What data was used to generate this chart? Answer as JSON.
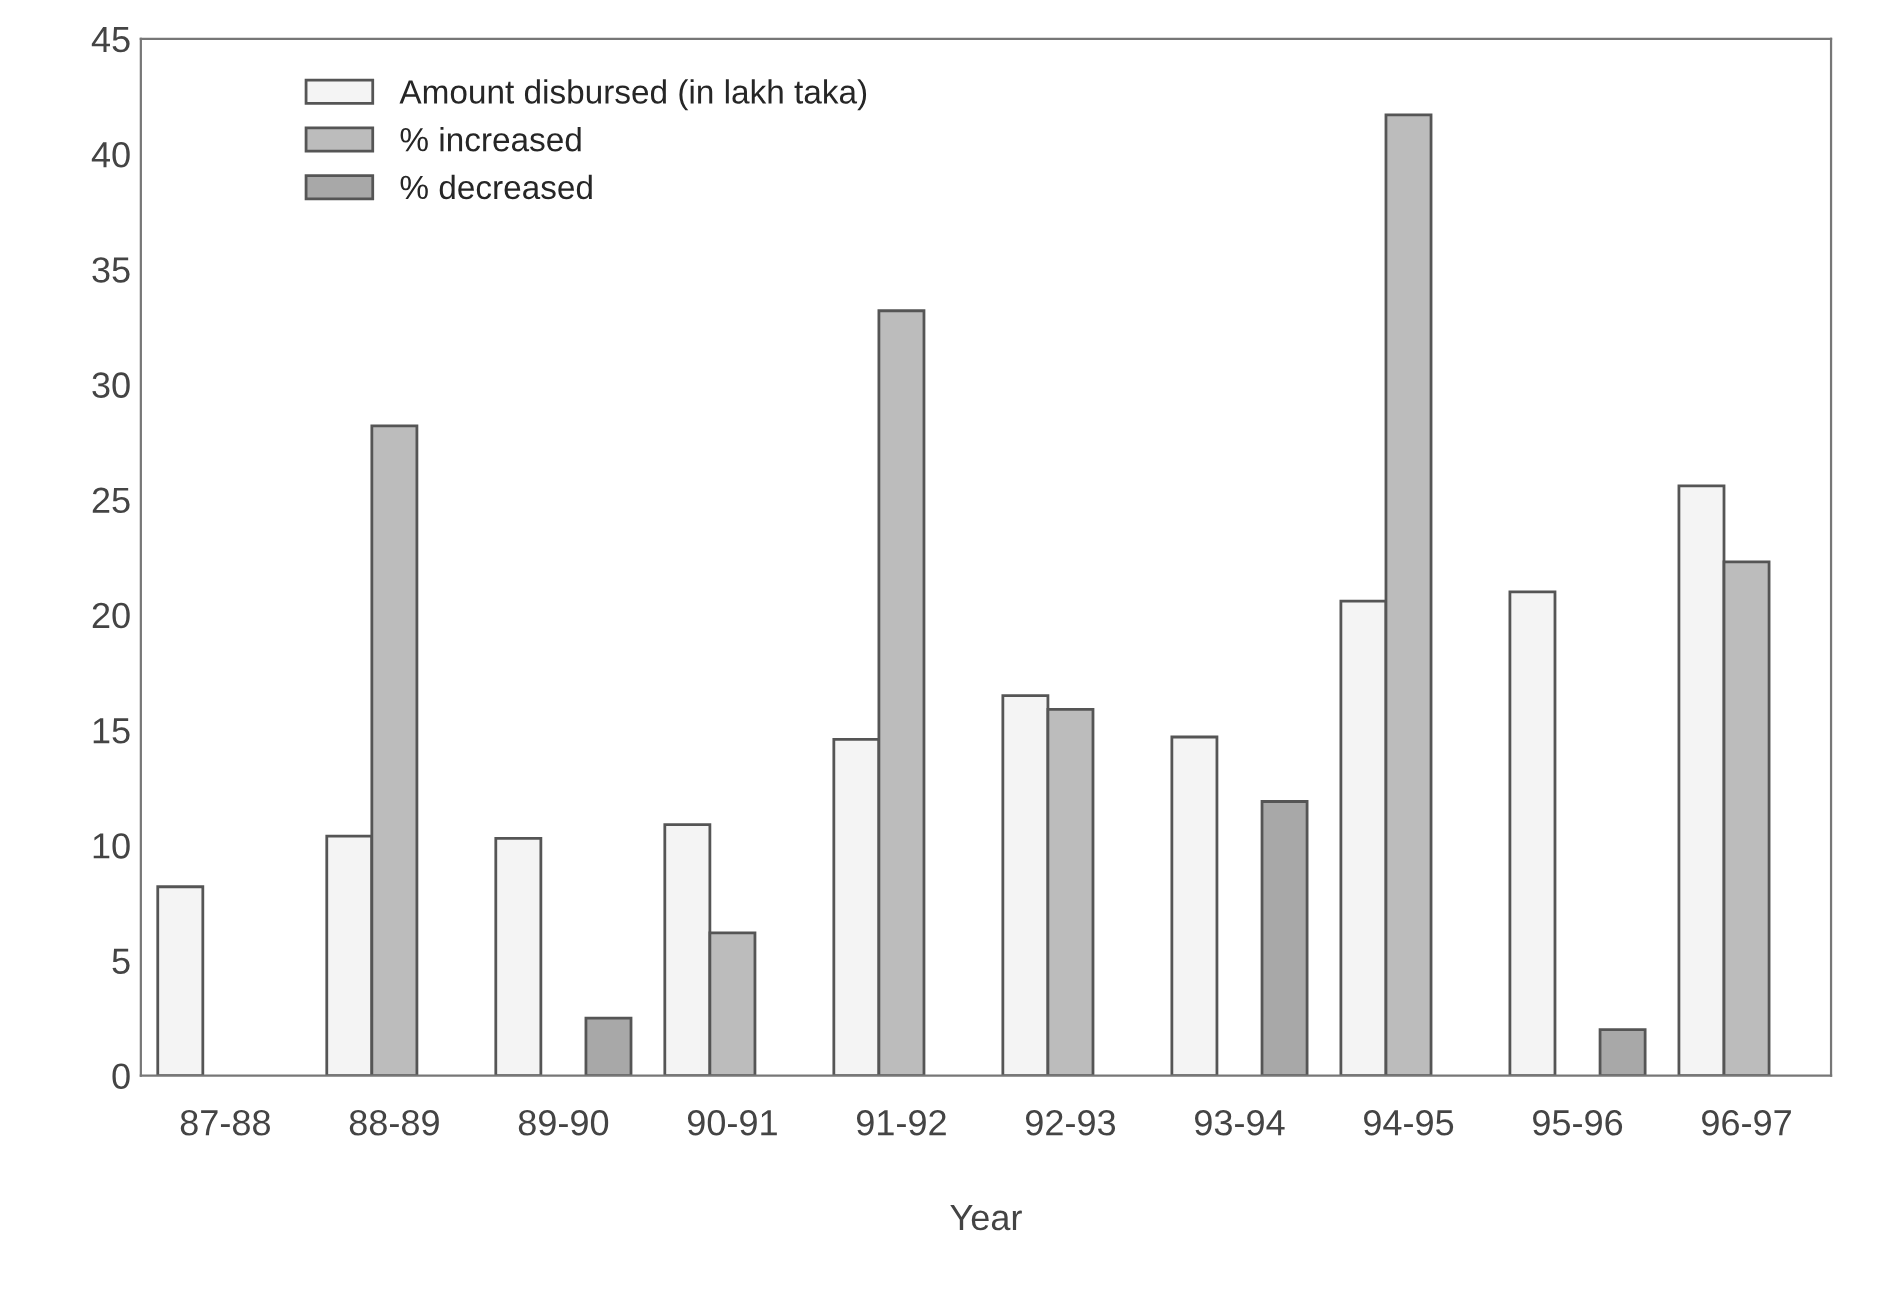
{
  "chart_data": {
    "type": "bar",
    "xlabel": "Year",
    "categories": [
      "87-88",
      "88-89",
      "89-90",
      "90-91",
      "91-92",
      "92-93",
      "93-94",
      "94-95",
      "95-96",
      "96-97"
    ],
    "series": [
      {
        "name": "Amount disbursed (in lakh taka)",
        "color": "#f4f4f4",
        "values": [
          8.2,
          10.4,
          10.3,
          10.9,
          14.6,
          16.5,
          14.7,
          20.6,
          21.0,
          25.6
        ]
      },
      {
        "name": "% increased",
        "color": "#bcbcbc",
        "values": [
          null,
          28.2,
          null,
          6.2,
          33.2,
          15.9,
          null,
          41.7,
          null,
          22.3
        ]
      },
      {
        "name": "% decreased",
        "color": "#a8a8a8",
        "values": [
          null,
          null,
          2.5,
          null,
          null,
          null,
          11.9,
          null,
          2.0,
          null
        ]
      }
    ],
    "ylim": [
      0,
      45
    ],
    "yticks": [
      0,
      5,
      10,
      15,
      20,
      25,
      30,
      35,
      40,
      45
    ],
    "grid": false,
    "legend": "top left"
  }
}
